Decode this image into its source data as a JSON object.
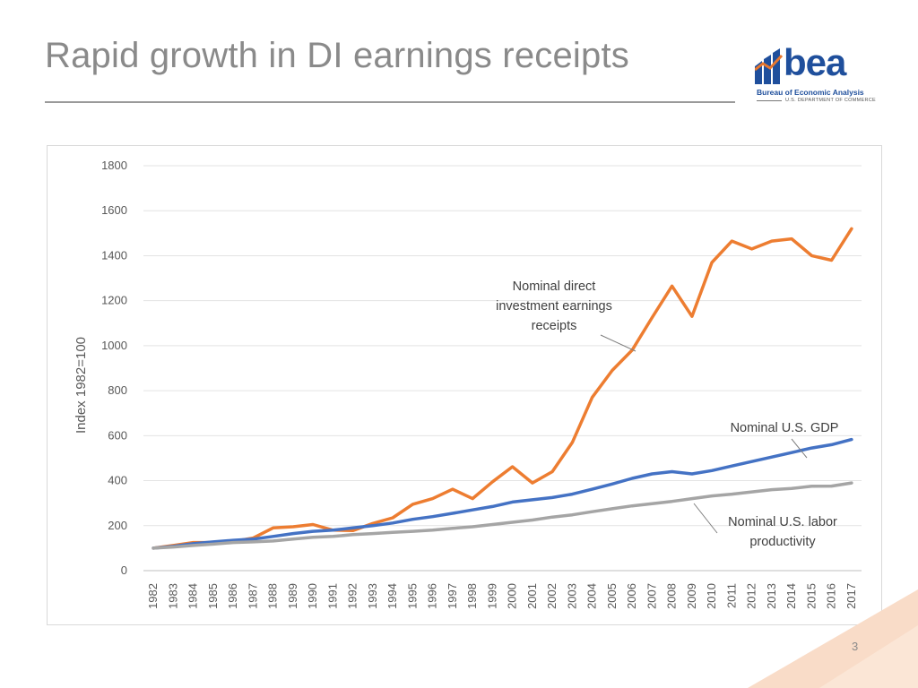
{
  "slide": {
    "title": "Rapid growth in DI earnings receipts",
    "page_number": "3"
  },
  "logo": {
    "word": "bea",
    "line1": "Bureau of Economic Analysis",
    "line2": "U.S. DEPARTMENT OF COMMERCE",
    "color": "#1f4f9c",
    "accent": "#e8772e"
  },
  "chart_data": {
    "type": "line",
    "ylabel": "Index 1982=100",
    "xlabel": "",
    "ylim": [
      0,
      1800
    ],
    "yticks": [
      0,
      200,
      400,
      600,
      800,
      1000,
      1200,
      1400,
      1600,
      1800
    ],
    "grid": true,
    "categories": [
      "1982",
      "1983",
      "1984",
      "1985",
      "1986",
      "1987",
      "1988",
      "1989",
      "1990",
      "1991",
      "1992",
      "1993",
      "1994",
      "1995",
      "1996",
      "1997",
      "1998",
      "1999",
      "2000",
      "2001",
      "2002",
      "2003",
      "2004",
      "2005",
      "2006",
      "2007",
      "2008",
      "2009",
      "2010",
      "2011",
      "2012",
      "2013",
      "2014",
      "2015",
      "2016",
      "2017"
    ],
    "series": [
      {
        "name": "Nominal direct investment earnings receipts",
        "color": "#ed7d31",
        "values": [
          100,
          112,
          125,
          125,
          130,
          145,
          190,
          195,
          205,
          180,
          178,
          210,
          235,
          295,
          320,
          362,
          320,
          395,
          462,
          390,
          440,
          570,
          770,
          890,
          980,
          1125,
          1265,
          1130,
          1370,
          1465,
          1430,
          1465,
          1475,
          1400,
          1380,
          1520
        ]
      },
      {
        "name": "Nominal U.S. GDP",
        "color": "#4472c4",
        "values": [
          100,
          108,
          120,
          128,
          135,
          140,
          152,
          165,
          175,
          180,
          190,
          200,
          212,
          228,
          240,
          255,
          270,
          285,
          305,
          315,
          325,
          340,
          362,
          385,
          410,
          430,
          440,
          430,
          445,
          465,
          485,
          505,
          525,
          545,
          560,
          583
        ]
      },
      {
        "name": "Nominal U.S. labor productivity",
        "color": "#a5a5a5",
        "values": [
          100,
          105,
          112,
          118,
          125,
          128,
          132,
          140,
          148,
          152,
          160,
          165,
          170,
          175,
          180,
          188,
          195,
          205,
          215,
          225,
          238,
          248,
          262,
          275,
          288,
          298,
          308,
          320,
          332,
          340,
          350,
          360,
          365,
          375,
          376,
          390
        ]
      }
    ],
    "annotations": [
      {
        "label_lines": [
          "Nominal direct",
          "investment earnings",
          "receipts"
        ]
      },
      {
        "label_lines": [
          "Nominal U.S. GDP"
        ]
      },
      {
        "label_lines": [
          "Nominal U.S. labor",
          "productivity"
        ]
      }
    ]
  }
}
